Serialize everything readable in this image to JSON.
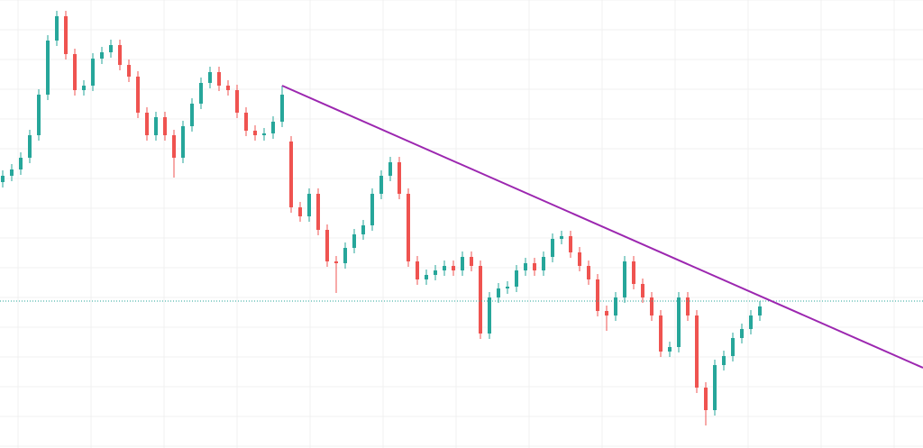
{
  "chart_data": {
    "type": "candlestick",
    "open": [
      295,
      302,
      309,
      322,
      347,
      392,
      452,
      479,
      437,
      397,
      402,
      432,
      439,
      447,
      425,
      412,
      372,
      347,
      367,
      347,
      322,
      357,
      382,
      405,
      417,
      402,
      397,
      372,
      352,
      347,
      349,
      362,
      340,
      267,
      257,
      282,
      242,
      207,
      205,
      222,
      237,
      247,
      282,
      302,
      317,
      282,
      207,
      187,
      192,
      197,
      202,
      197,
      212,
      202,
      127,
      167,
      177,
      179,
      197,
      205,
      197,
      212,
      232,
      235,
      217,
      202,
      187,
      152,
      147,
      167,
      207,
      182,
      167,
      147,
      107,
      112,
      167,
      147,
      67,
      42,
      92,
      102,
      122,
      132,
      147
    ],
    "high": [
      308,
      315,
      328,
      353,
      398,
      458,
      485,
      485,
      443,
      408,
      438,
      445,
      453,
      453,
      431,
      418,
      378,
      373,
      373,
      353,
      363,
      388,
      411,
      423,
      423,
      408,
      403,
      378,
      358,
      355,
      368,
      402,
      346,
      273,
      288,
      288,
      248,
      213,
      228,
      243,
      253,
      288,
      308,
      323,
      323,
      288,
      213,
      198,
      203,
      208,
      208,
      218,
      218,
      208,
      173,
      183,
      185,
      203,
      211,
      211,
      218,
      238,
      241,
      241,
      223,
      208,
      193,
      158,
      173,
      213,
      213,
      188,
      173,
      153,
      118,
      173,
      173,
      153,
      73,
      98,
      108,
      128,
      138,
      153,
      163
    ],
    "low": [
      289,
      296,
      303,
      316,
      341,
      386,
      446,
      431,
      391,
      391,
      396,
      426,
      433,
      419,
      406,
      366,
      341,
      341,
      341,
      300,
      316,
      351,
      376,
      399,
      396,
      391,
      366,
      346,
      341,
      341,
      343,
      356,
      261,
      251,
      251,
      236,
      201,
      172,
      199,
      216,
      231,
      241,
      276,
      296,
      276,
      201,
      181,
      181,
      186,
      191,
      191,
      191,
      196,
      121,
      121,
      161,
      171,
      173,
      191,
      191,
      191,
      206,
      226,
      211,
      196,
      181,
      146,
      130,
      141,
      161,
      176,
      161,
      141,
      101,
      101,
      106,
      141,
      61,
      25,
      36,
      86,
      96,
      116,
      126,
      141
    ],
    "close": [
      302,
      309,
      322,
      347,
      392,
      452,
      479,
      437,
      397,
      402,
      432,
      439,
      447,
      425,
      412,
      372,
      347,
      367,
      347,
      322,
      357,
      382,
      405,
      417,
      402,
      397,
      372,
      352,
      347,
      349,
      362,
      392,
      267,
      257,
      282,
      242,
      207,
      205,
      222,
      237,
      247,
      282,
      302,
      317,
      282,
      207,
      187,
      192,
      197,
      202,
      197,
      212,
      202,
      127,
      167,
      177,
      179,
      197,
      205,
      197,
      212,
      232,
      235,
      217,
      202,
      187,
      152,
      147,
      167,
      207,
      182,
      167,
      147,
      107,
      112,
      167,
      147,
      67,
      42,
      92,
      102,
      122,
      132,
      147,
      157
    ],
    "up_color": "#26a69a",
    "down_color": "#ef5350",
    "xlim": [
      -0.3,
      102.1
    ],
    "ylim": [
      0,
      497
    ],
    "grid": true,
    "price_line": {
      "value": 163,
      "color": "#26a69a"
    },
    "trendline": {
      "start": [
        31,
        402
      ],
      "end": [
        102.1,
        89
      ],
      "color": "#9c27b0"
    }
  }
}
